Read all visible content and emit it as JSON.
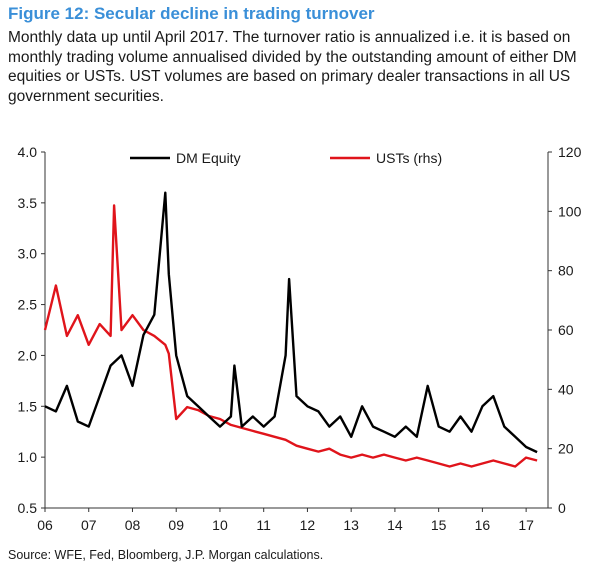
{
  "title": "Figure 12: Secular decline in trading turnover",
  "subtitle": "Monthly data up until April 2017. The turnover ratio is annualized i.e. it is based on monthly trading volume annualised divided by the outstanding amount of either DM equities or USTs. UST volumes are based on primary dealer transactions in all US government securities.",
  "source": "Source: WFE, Fed, Bloomberg, J.P. Morgan calculations.",
  "colors": {
    "dm_equity": "#000000",
    "usts": "#e0141b",
    "title": "#3a8fd8"
  },
  "chart_data": {
    "type": "line",
    "x_ticks": [
      "06",
      "07",
      "08",
      "09",
      "10",
      "11",
      "12",
      "13",
      "14",
      "15",
      "16",
      "17"
    ],
    "ylim_left": [
      0.5,
      4.0
    ],
    "y_ticks_left": [
      "0.5",
      "1.0",
      "1.5",
      "2.0",
      "2.5",
      "3.0",
      "3.5",
      "4.0"
    ],
    "ylim_right": [
      0,
      120
    ],
    "y_ticks_right": [
      "0",
      "20",
      "40",
      "60",
      "80",
      "100",
      "120"
    ],
    "grid": false,
    "legend_position": "top",
    "series": [
      {
        "name": "DM Equity",
        "axis": "left",
        "x": [
          2006.0,
          2006.25,
          2006.5,
          2006.75,
          2007.0,
          2007.25,
          2007.5,
          2007.75,
          2008.0,
          2008.25,
          2008.5,
          2008.75,
          2008.83,
          2009.0,
          2009.25,
          2009.5,
          2009.75,
          2010.0,
          2010.25,
          2010.33,
          2010.5,
          2010.75,
          2011.0,
          2011.25,
          2011.5,
          2011.58,
          2011.75,
          2012.0,
          2012.25,
          2012.5,
          2012.75,
          2013.0,
          2013.25,
          2013.5,
          2013.75,
          2014.0,
          2014.25,
          2014.5,
          2014.75,
          2015.0,
          2015.25,
          2015.5,
          2015.75,
          2016.0,
          2016.25,
          2016.5,
          2016.75,
          2017.0,
          2017.25
        ],
        "values": [
          1.5,
          1.45,
          1.7,
          1.35,
          1.3,
          1.6,
          1.9,
          2.0,
          1.7,
          2.2,
          2.4,
          3.6,
          2.8,
          2.0,
          1.6,
          1.5,
          1.4,
          1.3,
          1.4,
          1.9,
          1.3,
          1.4,
          1.3,
          1.4,
          2.0,
          2.75,
          1.6,
          1.5,
          1.45,
          1.3,
          1.4,
          1.2,
          1.5,
          1.3,
          1.25,
          1.2,
          1.3,
          1.2,
          1.7,
          1.3,
          1.25,
          1.4,
          1.25,
          1.5,
          1.6,
          1.3,
          1.2,
          1.1,
          1.05
        ]
      },
      {
        "name": "USTs (rhs)",
        "axis": "right",
        "x": [
          2006.0,
          2006.25,
          2006.5,
          2006.75,
          2007.0,
          2007.25,
          2007.5,
          2007.58,
          2007.75,
          2008.0,
          2008.25,
          2008.5,
          2008.75,
          2008.83,
          2009.0,
          2009.25,
          2009.5,
          2009.75,
          2010.0,
          2010.25,
          2010.5,
          2010.75,
          2011.0,
          2011.25,
          2011.5,
          2011.75,
          2012.0,
          2012.25,
          2012.5,
          2012.75,
          2013.0,
          2013.25,
          2013.5,
          2013.75,
          2014.0,
          2014.25,
          2014.5,
          2014.75,
          2015.0,
          2015.25,
          2015.5,
          2015.75,
          2016.0,
          2016.25,
          2016.5,
          2016.75,
          2017.0,
          2017.25
        ],
        "values": [
          60,
          75,
          58,
          65,
          55,
          62,
          58,
          102,
          60,
          65,
          60,
          58,
          55,
          52,
          30,
          34,
          33,
          31,
          30,
          28,
          27,
          26,
          25,
          24,
          23,
          21,
          20,
          19,
          20,
          18,
          17,
          18,
          17,
          18,
          17,
          16,
          17,
          16,
          15,
          14,
          15,
          14,
          15,
          16,
          15,
          14,
          17,
          16
        ]
      }
    ]
  }
}
